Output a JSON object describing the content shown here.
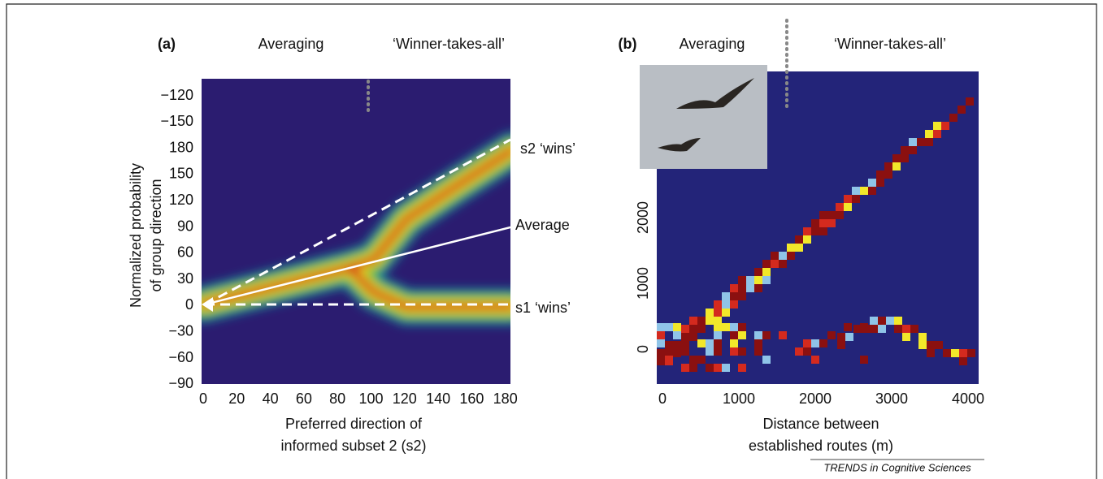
{
  "figure": {
    "panels": [
      {
        "label": "(a)",
        "left_region": "Averaging",
        "right_region": "‘Winner-takes-all’",
        "y_label_lines": [
          "Normalized probability",
          "of group direction"
        ],
        "y_ticks": [
          "−120",
          "−150",
          "180",
          "150",
          "120",
          "90",
          "60",
          "30",
          "0",
          "−30",
          "−60",
          "−90"
        ],
        "x_ticks": [
          "0",
          "20",
          "40",
          "60",
          "80",
          "100",
          "120",
          "140",
          "160",
          "180"
        ],
        "x_label_lines": [
          "Preferred direction of",
          "informed subset 2 (s2)"
        ],
        "annotations": [
          "s2 ‘wins’",
          "Average",
          "s1 ‘wins’"
        ]
      },
      {
        "label": "(b)",
        "left_region": "Averaging",
        "right_region": "‘Winner-takes-all’",
        "y_ticks": [
          "0",
          "1000",
          "2000"
        ],
        "x_ticks": [
          "0",
          "1000",
          "2000",
          "3000",
          "4000"
        ],
        "x_label_lines": [
          "Distance between",
          "established routes (m)"
        ]
      }
    ],
    "credit": "TRENDS in Cognitive Sciences"
  }
}
